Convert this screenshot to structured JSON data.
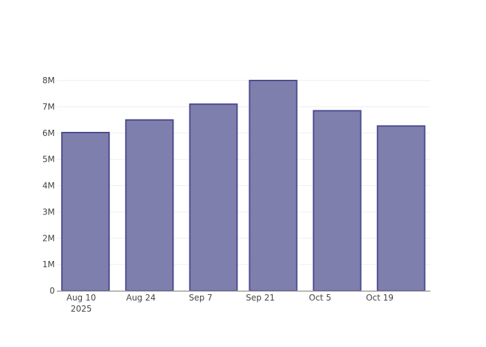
{
  "chart_data": {
    "type": "bar",
    "title": "",
    "xlabel": "",
    "ylabel": "",
    "x": [
      "2025-08-11",
      "2025-08-26",
      "2025-09-10",
      "2025-09-24",
      "2025-10-09",
      "2025-10-24"
    ],
    "values": [
      6020000,
      6500000,
      7100000,
      8000000,
      6850000,
      6270000
    ],
    "ylim": [
      0,
      8000000
    ],
    "yticks": [
      0,
      1000000,
      2000000,
      3000000,
      4000000,
      5000000,
      6000000,
      7000000,
      8000000
    ],
    "ytick_labels": [
      "0",
      "1M",
      "2M",
      "3M",
      "4M",
      "5M",
      "6M",
      "7M",
      "8M"
    ],
    "xticks": [
      "2025-08-10",
      "2025-08-24",
      "2025-09-07",
      "2025-09-21",
      "2025-10-05",
      "2025-10-19"
    ],
    "xtick_labels": [
      "Aug 10",
      "Aug 24",
      "Sep 7",
      "Sep 21",
      "Oct 5",
      "Oct 19"
    ],
    "xtick_year_label": "2025",
    "grid": true,
    "colors": {
      "bar_fill": "#7f7fae",
      "bar_stroke": "#4b4b8f",
      "grid": "#eeeeee",
      "axis": "#999999"
    }
  }
}
